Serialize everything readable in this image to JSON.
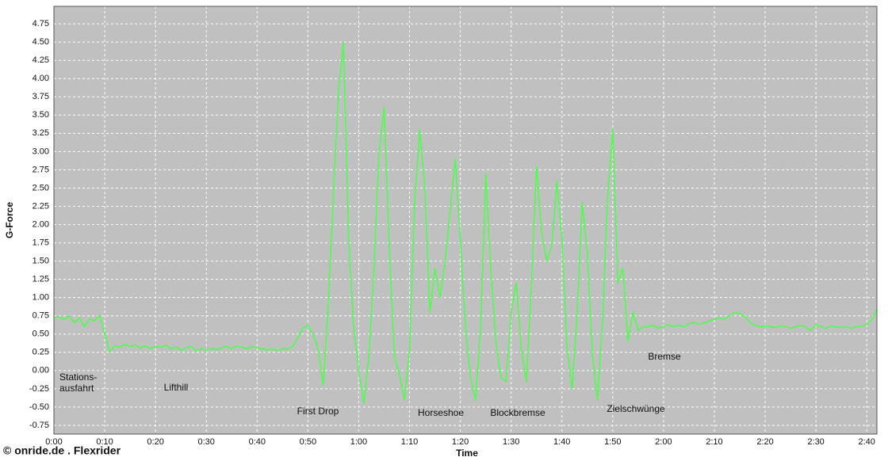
{
  "chart_data": {
    "type": "line",
    "x_label": "Time",
    "y_label": "G-Force",
    "credit": "© onride.de . Flexrider",
    "color": "#4dff4d",
    "background": "#c0c0c0",
    "grid": true,
    "annotations": [
      "Stations-\nausfahrt",
      "Lifthill",
      "First Drop",
      "Horseshoe",
      "Blockbremse",
      "Zielschwünge",
      "Bremse"
    ],
    "xlim": [
      0,
      162
    ],
    "ylim": [
      -0.87,
      4.99
    ],
    "xticks": [
      {
        "value": 0,
        "label": "0:00"
      },
      {
        "value": 10,
        "label": "0:10"
      },
      {
        "value": 20,
        "label": "0:20"
      },
      {
        "value": 30,
        "label": "0:30"
      },
      {
        "value": 40,
        "label": "0:40"
      },
      {
        "value": 50,
        "label": "0:50"
      },
      {
        "value": 60,
        "label": "1:00"
      },
      {
        "value": 70,
        "label": "1:10"
      },
      {
        "value": 80,
        "label": "1:20"
      },
      {
        "value": 90,
        "label": "1:30"
      },
      {
        "value": 100,
        "label": "1:40"
      },
      {
        "value": 110,
        "label": "1:50"
      },
      {
        "value": 120,
        "label": "2:00"
      },
      {
        "value": 130,
        "label": "2:10"
      },
      {
        "value": 140,
        "label": "2:20"
      },
      {
        "value": 150,
        "label": "2:30"
      },
      {
        "value": 160,
        "label": "2:40"
      }
    ],
    "yticks": [
      {
        "value": -0.75,
        "label": "-0.75"
      },
      {
        "value": -0.5,
        "label": "-0.50"
      },
      {
        "value": -0.25,
        "label": "-0.25"
      },
      {
        "value": 0,
        "label": "0.00"
      },
      {
        "value": 0.25,
        "label": "0.25"
      },
      {
        "value": 0.5,
        "label": "0.50"
      },
      {
        "value": 0.75,
        "label": "0.75"
      },
      {
        "value": 1,
        "label": "1.00"
      },
      {
        "value": 1.25,
        "label": "1.25"
      },
      {
        "value": 1.5,
        "label": "1.50"
      },
      {
        "value": 1.75,
        "label": "1.75"
      },
      {
        "value": 2,
        "label": "2.00"
      },
      {
        "value": 2.25,
        "label": "2.25"
      },
      {
        "value": 2.5,
        "label": "2.50"
      },
      {
        "value": 2.75,
        "label": "2.75"
      },
      {
        "value": 3,
        "label": "3.00"
      },
      {
        "value": 3.25,
        "label": "3.25"
      },
      {
        "value": 3.5,
        "label": "3.50"
      },
      {
        "value": 3.75,
        "label": "3.75"
      },
      {
        "value": 4,
        "label": "4.00"
      },
      {
        "value": 4.25,
        "label": "4.25"
      },
      {
        "value": 4.5,
        "label": "4.50"
      },
      {
        "value": 4.75,
        "label": "4.75"
      }
    ],
    "x": [
      0,
      1,
      2,
      3,
      4,
      5,
      6,
      7,
      8,
      9,
      10,
      11,
      12,
      13,
      14,
      15,
      16,
      17,
      18,
      19,
      20,
      21,
      22,
      23,
      24,
      25,
      26,
      27,
      28,
      29,
      30,
      31,
      32,
      33,
      34,
      35,
      36,
      37,
      38,
      39,
      40,
      41,
      42,
      43,
      44,
      45,
      46,
      47,
      48,
      49,
      50,
      51,
      52,
      53,
      54,
      55,
      56,
      57,
      58,
      59,
      60,
      61,
      62,
      63,
      64,
      65,
      66,
      67,
      68,
      69,
      70,
      71,
      72,
      73,
      74,
      75,
      76,
      77,
      78,
      79,
      80,
      81,
      82,
      83,
      84,
      85,
      86,
      87,
      88,
      89,
      90,
      91,
      92,
      93,
      94,
      95,
      96,
      97,
      98,
      99,
      100,
      101,
      102,
      103,
      104,
      105,
      106,
      107,
      108,
      109,
      110,
      111,
      112,
      113,
      114,
      115,
      116,
      117,
      118,
      119,
      120,
      121,
      122,
      123,
      124,
      125,
      126,
      127,
      128,
      129,
      130,
      131,
      132,
      133,
      134,
      135,
      136,
      137,
      138,
      139,
      140,
      141,
      142,
      143,
      144,
      145,
      146,
      147,
      148,
      149,
      150,
      151,
      152,
      153,
      154,
      155,
      156,
      157,
      158,
      159,
      160,
      161,
      162
    ],
    "values": [
      0.72,
      0.74,
      0.7,
      0.75,
      0.66,
      0.72,
      0.6,
      0.71,
      0.68,
      0.76,
      0.5,
      0.26,
      0.34,
      0.32,
      0.36,
      0.33,
      0.35,
      0.31,
      0.34,
      0.3,
      0.33,
      0.32,
      0.35,
      0.3,
      0.32,
      0.28,
      0.31,
      0.33,
      0.27,
      0.3,
      0.28,
      0.3,
      0.29,
      0.31,
      0.33,
      0.3,
      0.34,
      0.32,
      0.3,
      0.33,
      0.31,
      0.3,
      0.28,
      0.3,
      0.27,
      0.3,
      0.29,
      0.33,
      0.45,
      0.58,
      0.62,
      0.5,
      0.3,
      -0.2,
      0.9,
      2.4,
      3.8,
      4.5,
      1.8,
      0.6,
      0.0,
      -0.45,
      0.2,
      1.4,
      3.0,
      3.6,
      1.7,
      0.2,
      -0.05,
      -0.4,
      0.3,
      2.3,
      3.3,
      2.5,
      0.8,
      1.4,
      1.0,
      1.5,
      2.2,
      2.9,
      1.8,
      0.6,
      -0.1,
      -0.4,
      0.6,
      2.7,
      1.4,
      0.4,
      -0.1,
      -0.15,
      0.8,
      1.2,
      0.3,
      -0.15,
      1.2,
      2.8,
      1.9,
      1.5,
      1.7,
      2.6,
      1.8,
      0.3,
      -0.25,
      0.8,
      2.3,
      1.6,
      0.2,
      -0.4,
      0.7,
      2.4,
      3.3,
      1.2,
      1.4,
      0.4,
      0.8,
      0.55,
      0.6,
      0.6,
      0.62,
      0.58,
      0.6,
      0.63,
      0.6,
      0.62,
      0.6,
      0.64,
      0.66,
      0.63,
      0.65,
      0.68,
      0.7,
      0.72,
      0.7,
      0.75,
      0.8,
      0.78,
      0.74,
      0.66,
      0.62,
      0.6,
      0.61,
      0.6,
      0.59,
      0.61,
      0.6,
      0.58,
      0.6,
      0.62,
      0.6,
      0.55,
      0.63,
      0.6,
      0.58,
      0.61,
      0.6,
      0.59,
      0.6,
      0.58,
      0.6,
      0.61,
      0.63,
      0.7,
      0.85
    ]
  }
}
